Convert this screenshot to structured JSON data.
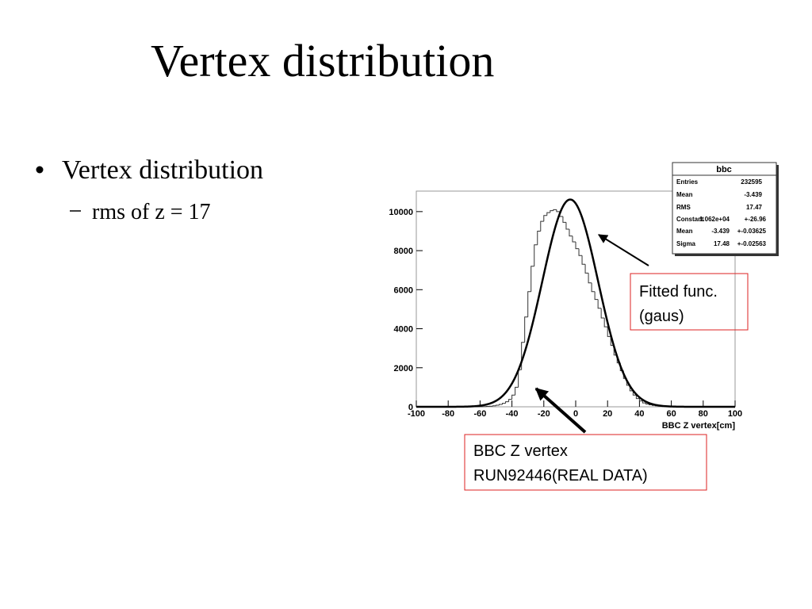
{
  "slide": {
    "title": "Vertex distribution",
    "bullet": "Vertex distribution",
    "sub_bullet": "rms of z = 17"
  },
  "chart_data": {
    "type": "histogram",
    "bins": [
      -100,
      -98,
      -96,
      -94,
      -92,
      -90,
      -88,
      -86,
      -84,
      -82,
      -80,
      -78,
      -76,
      -74,
      -72,
      -70,
      -68,
      -66,
      -64,
      -62,
      -60,
      -58,
      -56,
      -54,
      -52,
      -50,
      -48,
      -46,
      -44,
      -42,
      -40,
      -38,
      -36,
      -34,
      -32,
      -30,
      -28,
      -26,
      -24,
      -22,
      -20,
      -18,
      -16,
      -14,
      -12,
      -10,
      -8,
      -6,
      -4,
      -2,
      0,
      2,
      4,
      6,
      8,
      10,
      12,
      14,
      16,
      18,
      20,
      22,
      24,
      26,
      28,
      30,
      32,
      34,
      36,
      38,
      40,
      42,
      44,
      46,
      48,
      50,
      52,
      54,
      56,
      58,
      60,
      62,
      64,
      66,
      68,
      70,
      72,
      74,
      76,
      78,
      80,
      82,
      84,
      86,
      88,
      90,
      92,
      94,
      96,
      98,
      100
    ],
    "values": [
      0,
      0,
      0,
      0,
      0,
      0,
      0,
      0,
      0,
      0,
      0,
      0,
      0,
      0,
      0,
      0,
      0,
      0,
      0,
      0,
      5,
      10,
      20,
      30,
      50,
      80,
      120,
      180,
      260,
      380,
      600,
      1000,
      1900,
      3300,
      4600,
      5900,
      7200,
      8300,
      9000,
      9500,
      9800,
      9950,
      10050,
      10100,
      10000,
      9750,
      9450,
      9100,
      8750,
      8450,
      8100,
      7750,
      7300,
      6850,
      6350,
      5900,
      5500,
      5050,
      4550,
      4100,
      3600,
      3150,
      2650,
      2250,
      1850,
      1450,
      1100,
      820,
      600,
      420,
      300,
      200,
      140,
      100,
      70,
      50,
      35,
      25,
      18,
      12,
      8,
      5,
      3,
      2,
      1,
      0,
      0,
      0,
      0,
      0,
      0,
      0,
      0,
      0,
      0,
      0,
      0,
      0,
      0,
      0
    ],
    "color": "#333333",
    "fit_color": "#000000",
    "xlim": [
      -100,
      100
    ],
    "xticks": [
      -100,
      -80,
      -60,
      -40,
      -20,
      0,
      20,
      40,
      60,
      80,
      100
    ],
    "ylim": [
      0,
      11050
    ],
    "yticks": [
      0,
      2000,
      4000,
      6000,
      8000,
      10000
    ],
    "x_label": "BBC Z vertex[cm]",
    "stats": {
      "title": "bbc",
      "rows": [
        {
          "name": "Entries",
          "value": 232595
        },
        {
          "name": "Mean",
          "value": -3.439
        },
        {
          "name": "RMS",
          "value": 17.47
        },
        {
          "name": "Constant",
          "value": {
            "value": 10620,
            "label": "1.062e+04"
          },
          "error": "+-26.96"
        },
        {
          "name": "Mean",
          "value": -3.439,
          "error": "+-0.03625"
        },
        {
          "name": "Sigma",
          "value": 17.48,
          "error": "+-0.02563"
        }
      ]
    },
    "annotations": [
      {
        "lines": [
          "Fitted func.",
          "(gaus)"
        ]
      },
      {
        "lines": [
          "BBC Z vertex",
          "RUN92446(REAL DATA)"
        ]
      }
    ]
  }
}
